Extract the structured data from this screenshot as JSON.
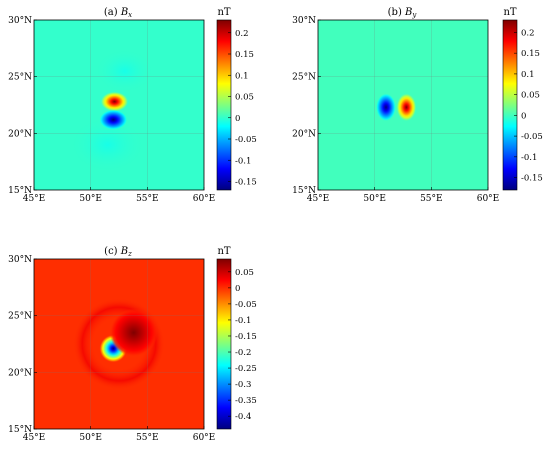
{
  "colors": {
    "jet": [
      "#00007f",
      "#0000ff",
      "#007fff",
      "#00ffff",
      "#7fff7f",
      "#ffff00",
      "#ff7f00",
      "#ff0000",
      "#7f0000"
    ],
    "axis": "#000000",
    "grid": "#7a7a7a"
  },
  "chart_data": [
    {
      "type": "heatmap",
      "panel": "(a)",
      "component": "x",
      "title": "(a) B_x",
      "unit": "nT",
      "x_tick_labels": [
        "45°E",
        "50°E",
        "55°E",
        "60°E"
      ],
      "y_tick_labels": [
        "15°N",
        "20°N",
        "25°N",
        "30°N"
      ],
      "x_ticks": [
        45,
        50,
        55,
        60
      ],
      "y_ticks": [
        15,
        20,
        25,
        30
      ],
      "xlim": [
        45,
        60
      ],
      "ylim": [
        15,
        30
      ],
      "grid": true,
      "clim": [
        -0.17,
        0.23
      ],
      "colorbar_ticks": [
        0.2,
        0.15,
        0.1,
        0.05,
        0,
        -0.05,
        -0.1,
        -0.15
      ],
      "colorbar_tick_labels": [
        "0.2",
        "0.15",
        "0.1",
        "0.05",
        "0",
        "-0.05",
        "-0.1",
        "-0.15"
      ],
      "background_value": 0.0,
      "features": [
        {
          "kind": "max",
          "lon": 52.1,
          "lat": 22.8,
          "value": 0.23
        },
        {
          "kind": "min",
          "lon": 52.0,
          "lat": 21.2,
          "value": -0.17
        }
      ]
    },
    {
      "type": "heatmap",
      "panel": "(b)",
      "component": "y",
      "title": "(b) B_y",
      "unit": "nT",
      "x_tick_labels": [
        "45°E",
        "50°E",
        "55°E",
        "60°E"
      ],
      "y_tick_labels": [
        "15°N",
        "20°N",
        "25°N",
        "30°N"
      ],
      "x_ticks": [
        45,
        50,
        55,
        60
      ],
      "y_ticks": [
        15,
        20,
        25,
        30
      ],
      "xlim": [
        45,
        60
      ],
      "ylim": [
        15,
        30
      ],
      "grid": true,
      "clim": [
        -0.18,
        0.23
      ],
      "colorbar_ticks": [
        0.2,
        0.15,
        0.1,
        0.05,
        0,
        -0.05,
        -0.1,
        -0.15
      ],
      "colorbar_tick_labels": [
        "0.2",
        "0.15",
        "0.1",
        "0.05",
        "0",
        "-0.05",
        "-0.1",
        "-0.15"
      ],
      "background_value": 0.0,
      "features": [
        {
          "kind": "max",
          "lon": 52.8,
          "lat": 22.3,
          "value": 0.23
        },
        {
          "kind": "min",
          "lon": 51.0,
          "lat": 22.3,
          "value": -0.18
        }
      ]
    },
    {
      "type": "heatmap",
      "panel": "(c)",
      "component": "z",
      "title": "(c) B_z",
      "unit": "nT",
      "x_tick_labels": [
        "45°E",
        "50°E",
        "55°E",
        "60°E"
      ],
      "y_tick_labels": [
        "15°N",
        "20°N",
        "25°N",
        "30°N"
      ],
      "x_ticks": [
        45,
        50,
        55,
        60
      ],
      "y_ticks": [
        15,
        20,
        25,
        30
      ],
      "xlim": [
        45,
        60
      ],
      "ylim": [
        15,
        30
      ],
      "grid": true,
      "clim": [
        -0.44,
        0.09
      ],
      "colorbar_ticks": [
        0.05,
        0,
        -0.05,
        -0.1,
        -0.15,
        -0.2,
        -0.25,
        -0.3,
        -0.35,
        -0.4
      ],
      "colorbar_tick_labels": [
        "0.05",
        "0",
        "-0.05",
        "-0.1",
        "-0.15",
        "-0.2",
        "-0.25",
        "-0.3",
        "-0.35",
        "-0.4"
      ],
      "background_value": 0.0,
      "features": [
        {
          "kind": "min",
          "lon": 52.0,
          "lat": 22.1,
          "value": -0.44
        },
        {
          "kind": "max",
          "lon": 53.8,
          "lat": 23.5,
          "value": 0.09
        }
      ]
    }
  ]
}
